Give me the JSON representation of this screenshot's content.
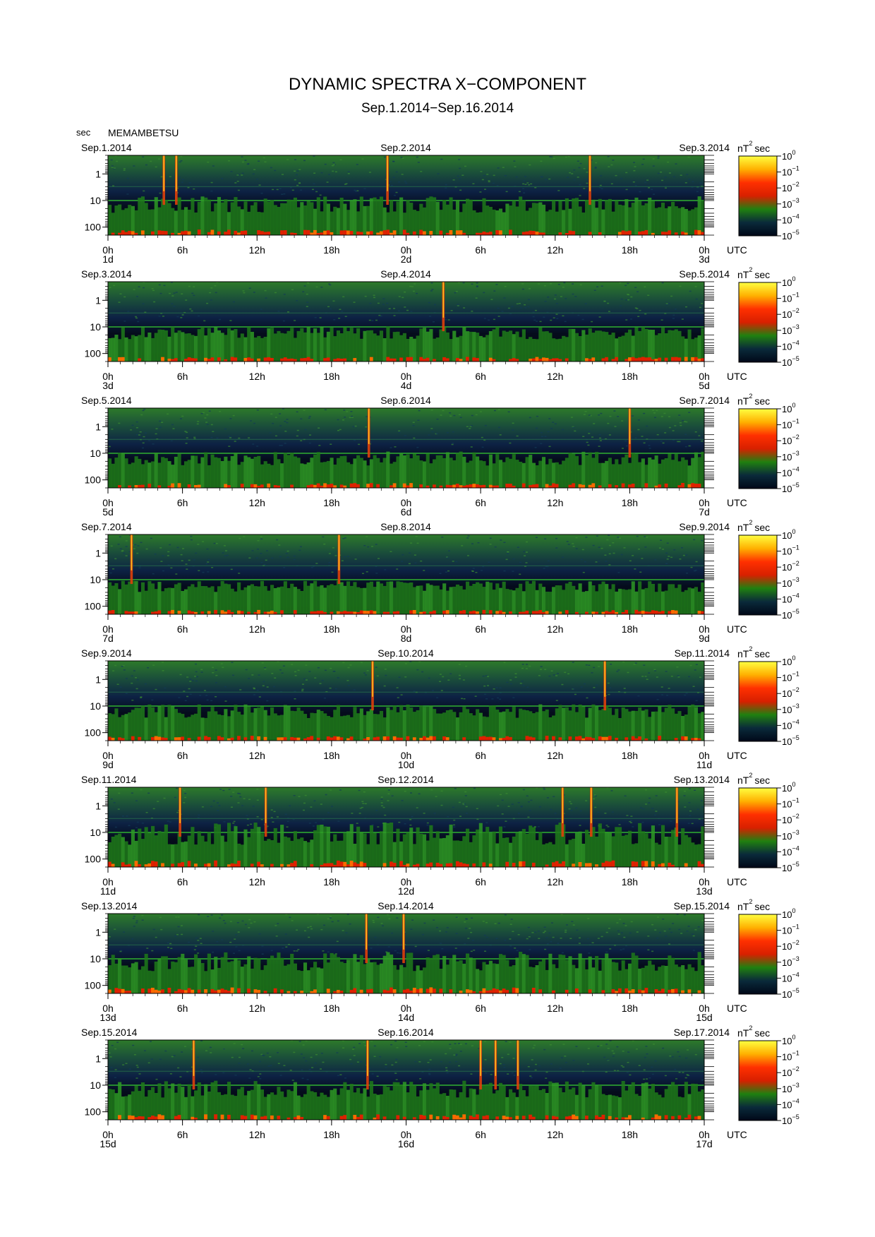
{
  "chart_data": {
    "type": "heatmap",
    "title": "DYNAMIC SPECTRA X−COMPONENT",
    "subtitle": "Sep.1.2014−Sep.16.2014",
    "station": "MEMAMBETSU",
    "y_unit": "sec",
    "x_unit": "UTC",
    "y_scale": "log",
    "y_range_sec": [
      0.2,
      200
    ],
    "y_ticks": [
      {
        "value": 1,
        "label": "1"
      },
      {
        "value": 10,
        "label": "10"
      },
      {
        "value": 100,
        "label": "100"
      }
    ],
    "x_tick_labels": [
      "0h",
      "6h",
      "12h",
      "18h",
      "0h",
      "6h",
      "12h",
      "18h",
      "0h"
    ],
    "colorbar": {
      "unit_base": "nT",
      "unit_sup": "2",
      "unit_suffix": "sec",
      "scale": "log",
      "range": [
        1e-05,
        1
      ],
      "tick_exponents": [
        "0",
        "−1",
        "−2",
        "−3",
        "−4",
        "−5"
      ],
      "colors": [
        "#ffff40",
        "#ffb000",
        "#ff3000",
        "#d82000",
        "#208010",
        "#0a2a3a",
        "#000818"
      ]
    },
    "panels": [
      {
        "date_left": "Sep.1.2014",
        "date_mid": "Sep.2.2014",
        "date_right": "Sep.3.2014",
        "day_left": "1d",
        "day_mid": "2d",
        "day_right": "3d",
        "events_hours": [
          4.5,
          5.5,
          22.5,
          38.8
        ],
        "activity": 0.6
      },
      {
        "date_left": "Sep.3.2014",
        "date_mid": "Sep.4.2014",
        "date_right": "Sep.5.2014",
        "day_left": "3d",
        "day_mid": "4d",
        "day_right": "5d",
        "events_hours": [
          27.0
        ],
        "activity": 0.45
      },
      {
        "date_left": "Sep.5.2014",
        "date_mid": "Sep.6.2014",
        "date_right": "Sep.7.2014",
        "day_left": "5d",
        "day_mid": "6d",
        "day_right": "7d",
        "events_hours": [
          21.0,
          42.0
        ],
        "activity": 0.5
      },
      {
        "date_left": "Sep.7.2014",
        "date_mid": "Sep.8.2014",
        "date_right": "Sep.9.2014",
        "day_left": "7d",
        "day_mid": "8d",
        "day_right": "9d",
        "events_hours": [
          1.9,
          18.6
        ],
        "activity": 0.4
      },
      {
        "date_left": "Sep.9.2014",
        "date_mid": "Sep.10.2014",
        "date_right": "Sep.11.2014",
        "day_left": "9d",
        "day_mid": "10d",
        "day_right": "11d",
        "events_hours": [
          21.3,
          40.0
        ],
        "activity": 0.5
      },
      {
        "date_left": "Sep.11.2014",
        "date_mid": "Sep.12.2014",
        "date_right": "Sep.13.2014",
        "day_left": "11d",
        "day_mid": "12d",
        "day_right": "13d",
        "events_hours": [
          5.8,
          12.7,
          36.6,
          38.9,
          45.8
        ],
        "activity": 0.8
      },
      {
        "date_left": "Sep.13.2014",
        "date_mid": "Sep.14.2014",
        "date_right": "Sep.15.2014",
        "day_left": "13d",
        "day_mid": "14d",
        "day_right": "15d",
        "events_hours": [
          20.8,
          23.8
        ],
        "activity": 0.7
      },
      {
        "date_left": "Sep.15.2014",
        "date_mid": "Sep.16.2014",
        "date_right": "Sep.17.2014",
        "day_left": "15d",
        "day_mid": "16d",
        "day_right": "17d",
        "events_hours": [
          6.9,
          20.9,
          30.0,
          31.2,
          33.0
        ],
        "activity": 0.6
      }
    ]
  }
}
